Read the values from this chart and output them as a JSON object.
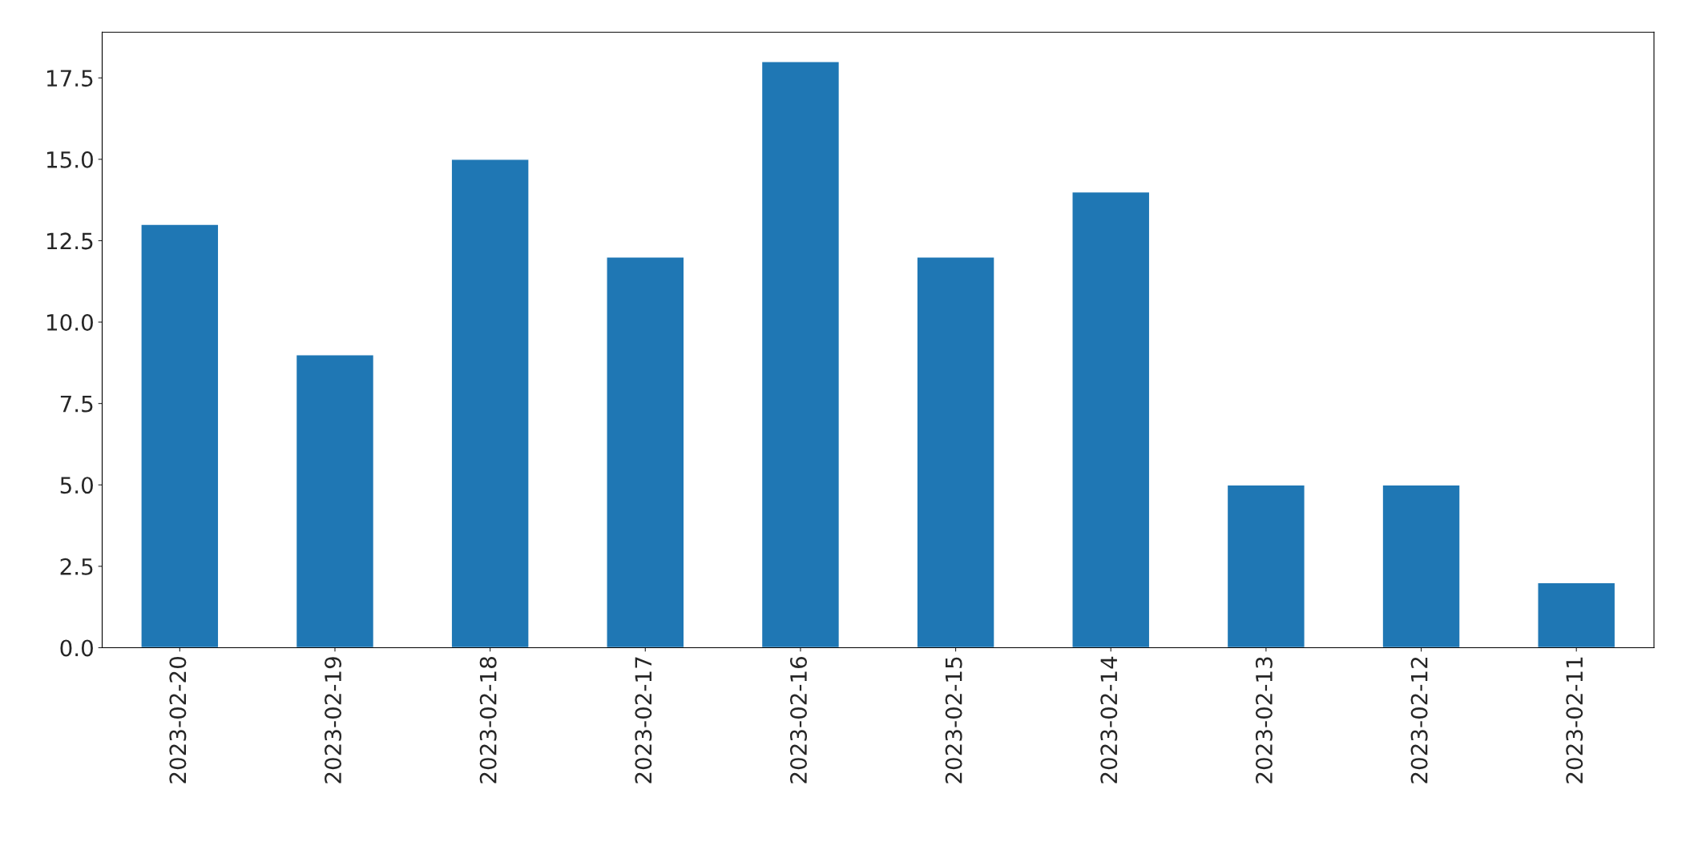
{
  "chart_data": {
    "type": "bar",
    "categories": [
      "2023-02-20",
      "2023-02-19",
      "2023-02-18",
      "2023-02-17",
      "2023-02-16",
      "2023-02-15",
      "2023-02-14",
      "2023-02-13",
      "2023-02-12",
      "2023-02-11"
    ],
    "values": [
      13,
      9,
      15,
      12,
      18,
      12,
      14,
      5,
      5,
      2
    ],
    "color": "#1f77b4",
    "ylim": [
      0,
      18.9
    ],
    "yticks": [
      {
        "value": 0,
        "label": "0.0"
      },
      {
        "value": 2.5,
        "label": "2.5"
      },
      {
        "value": 5,
        "label": "5.0"
      },
      {
        "value": 7.5,
        "label": "7.5"
      },
      {
        "value": 10,
        "label": "10.0"
      },
      {
        "value": 12.5,
        "label": "12.5"
      },
      {
        "value": 15,
        "label": "15.0"
      },
      {
        "value": 17.5,
        "label": "17.5"
      }
    ],
    "grid": false
  }
}
